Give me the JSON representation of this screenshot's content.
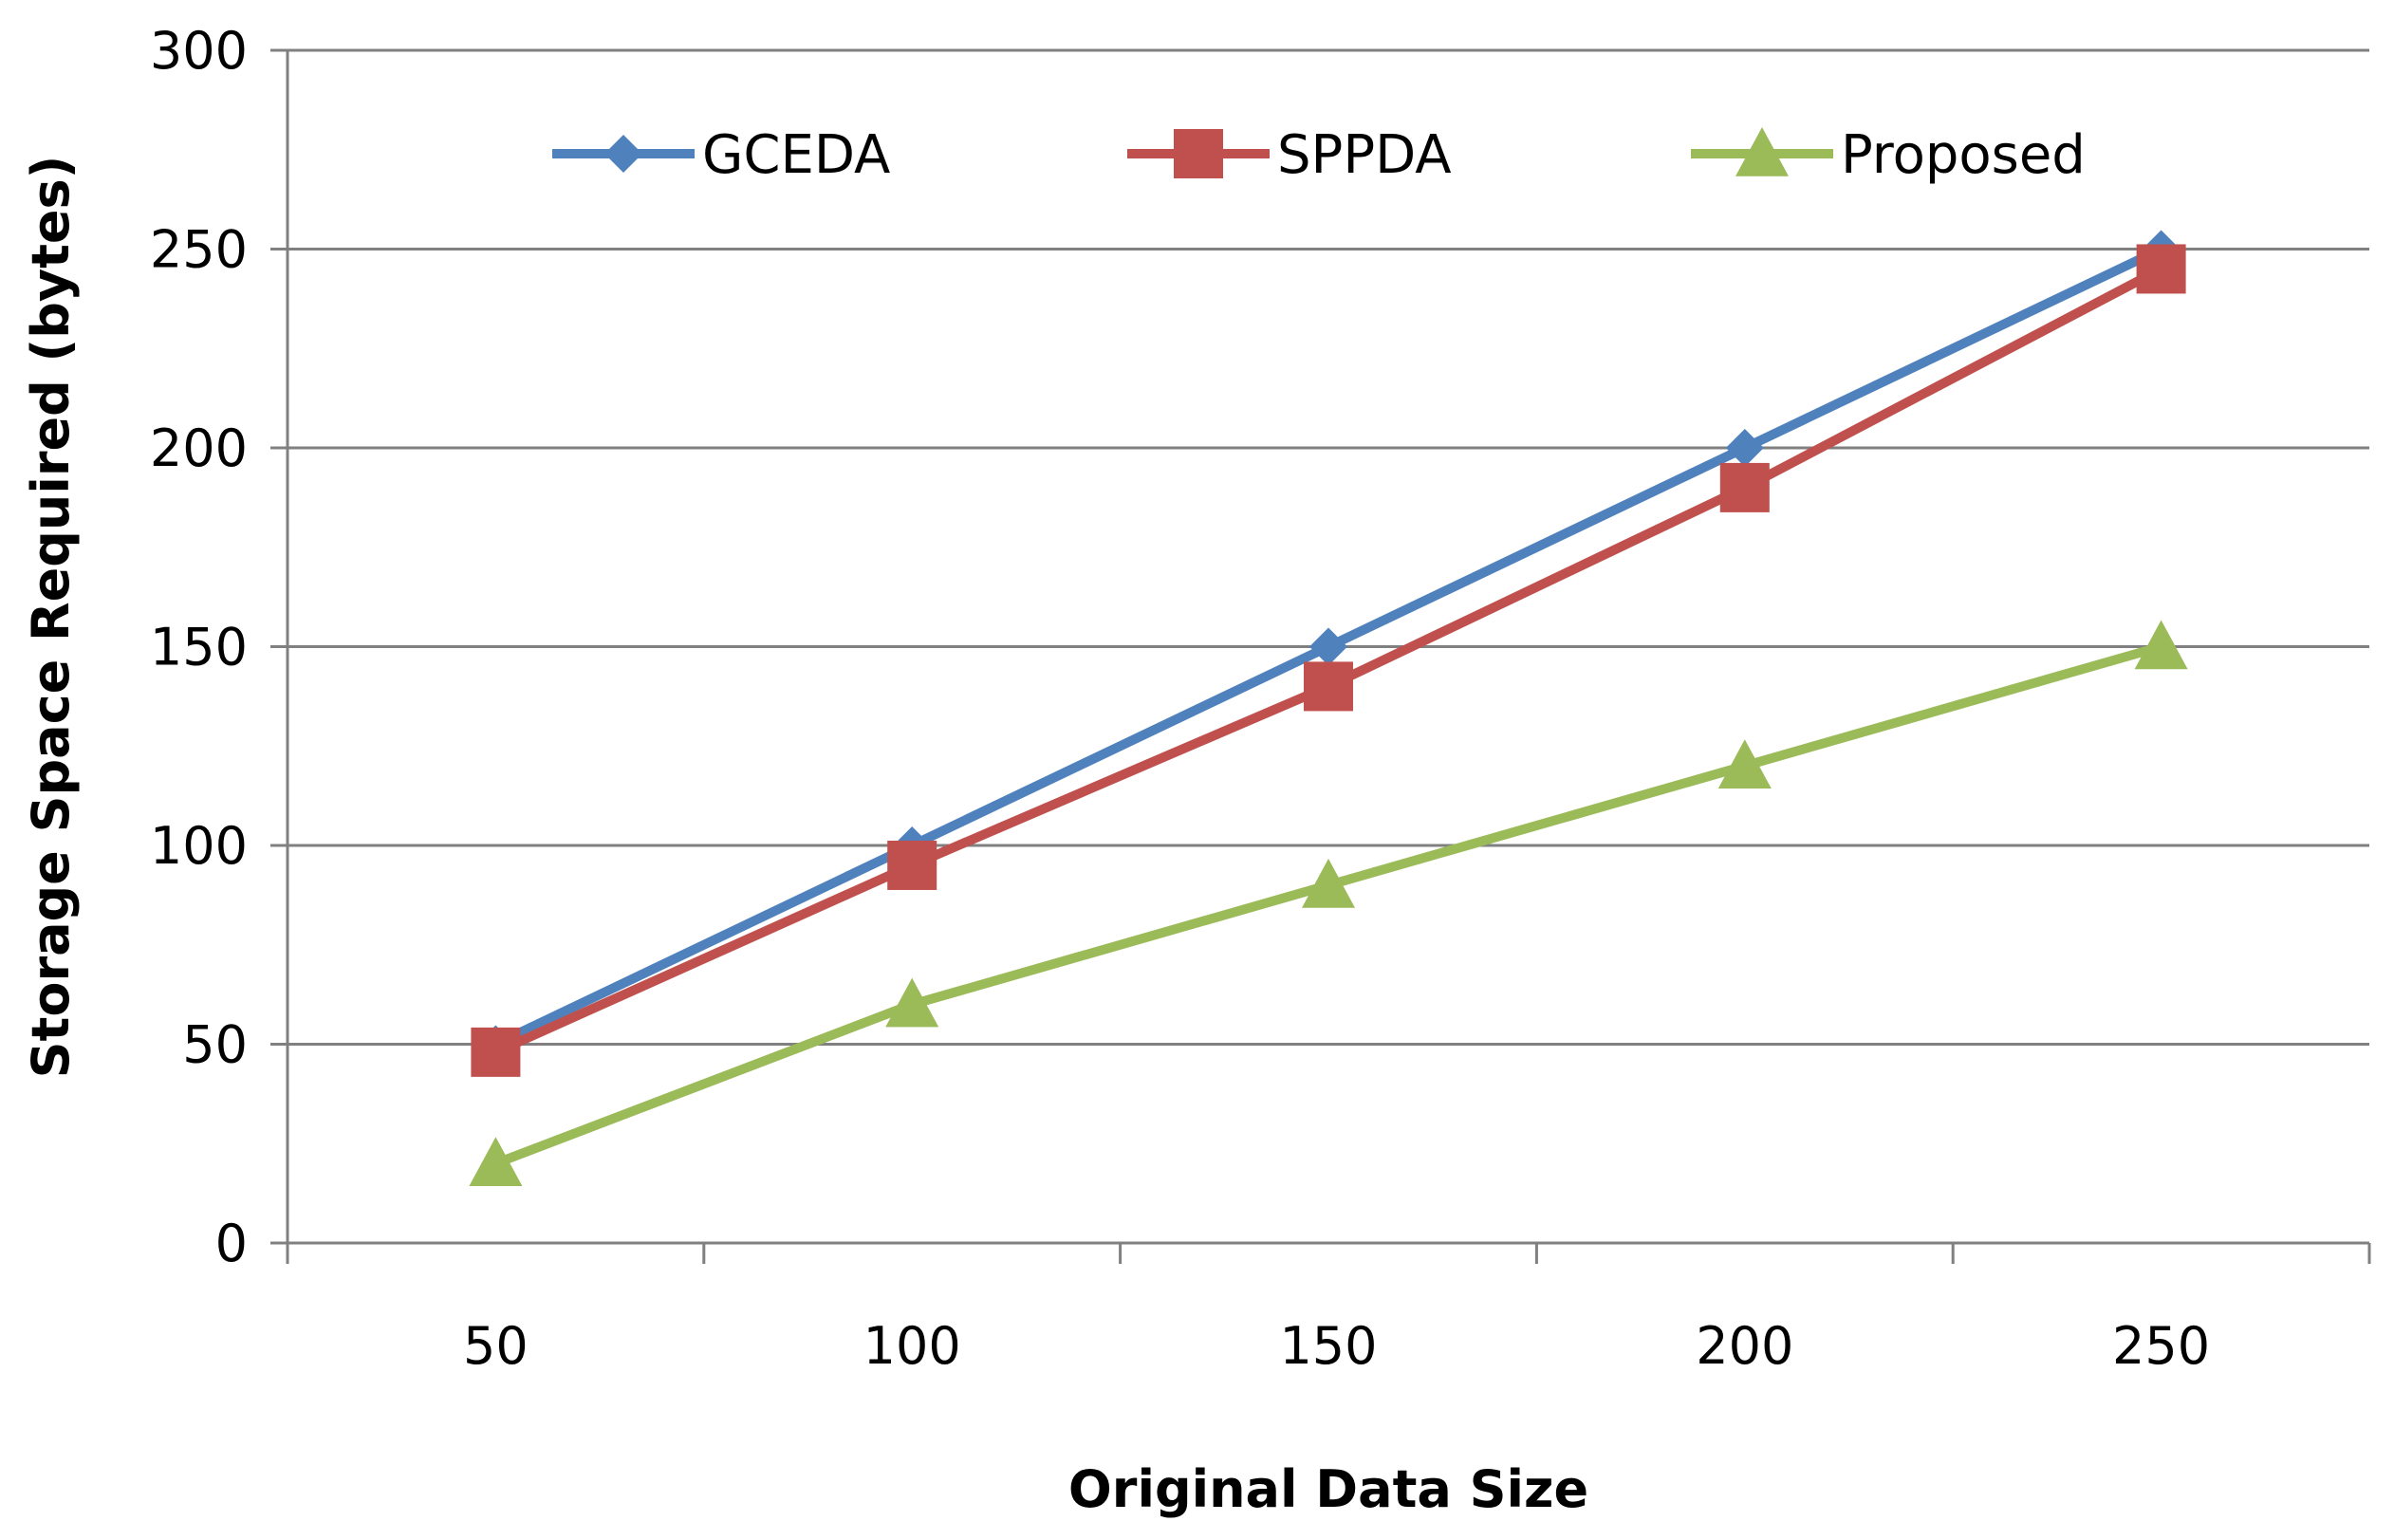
{
  "chart_data": {
    "type": "line",
    "title": "",
    "xlabel": "Original Data Size",
    "ylabel": "Storage Space  Required (bytes)",
    "categories": [
      "50",
      "100",
      "150",
      "200",
      "250"
    ],
    "ylim": [
      0,
      300
    ],
    "yticks": [
      0,
      50,
      100,
      150,
      200,
      250,
      300
    ],
    "grid": "horizontal",
    "legend_position": "top",
    "series": [
      {
        "name": "GCEDA",
        "values": [
          50,
          100,
          150,
          200,
          250
        ],
        "color": "#4F81BD",
        "marker": "diamond"
      },
      {
        "name": "SPPDA",
        "values": [
          48,
          95,
          140,
          190,
          245
        ],
        "color": "#C0504D",
        "marker": "square"
      },
      {
        "name": "Proposed",
        "values": [
          20,
          60,
          90,
          120,
          150
        ],
        "color": "#9BBB59",
        "marker": "triangle"
      }
    ]
  }
}
